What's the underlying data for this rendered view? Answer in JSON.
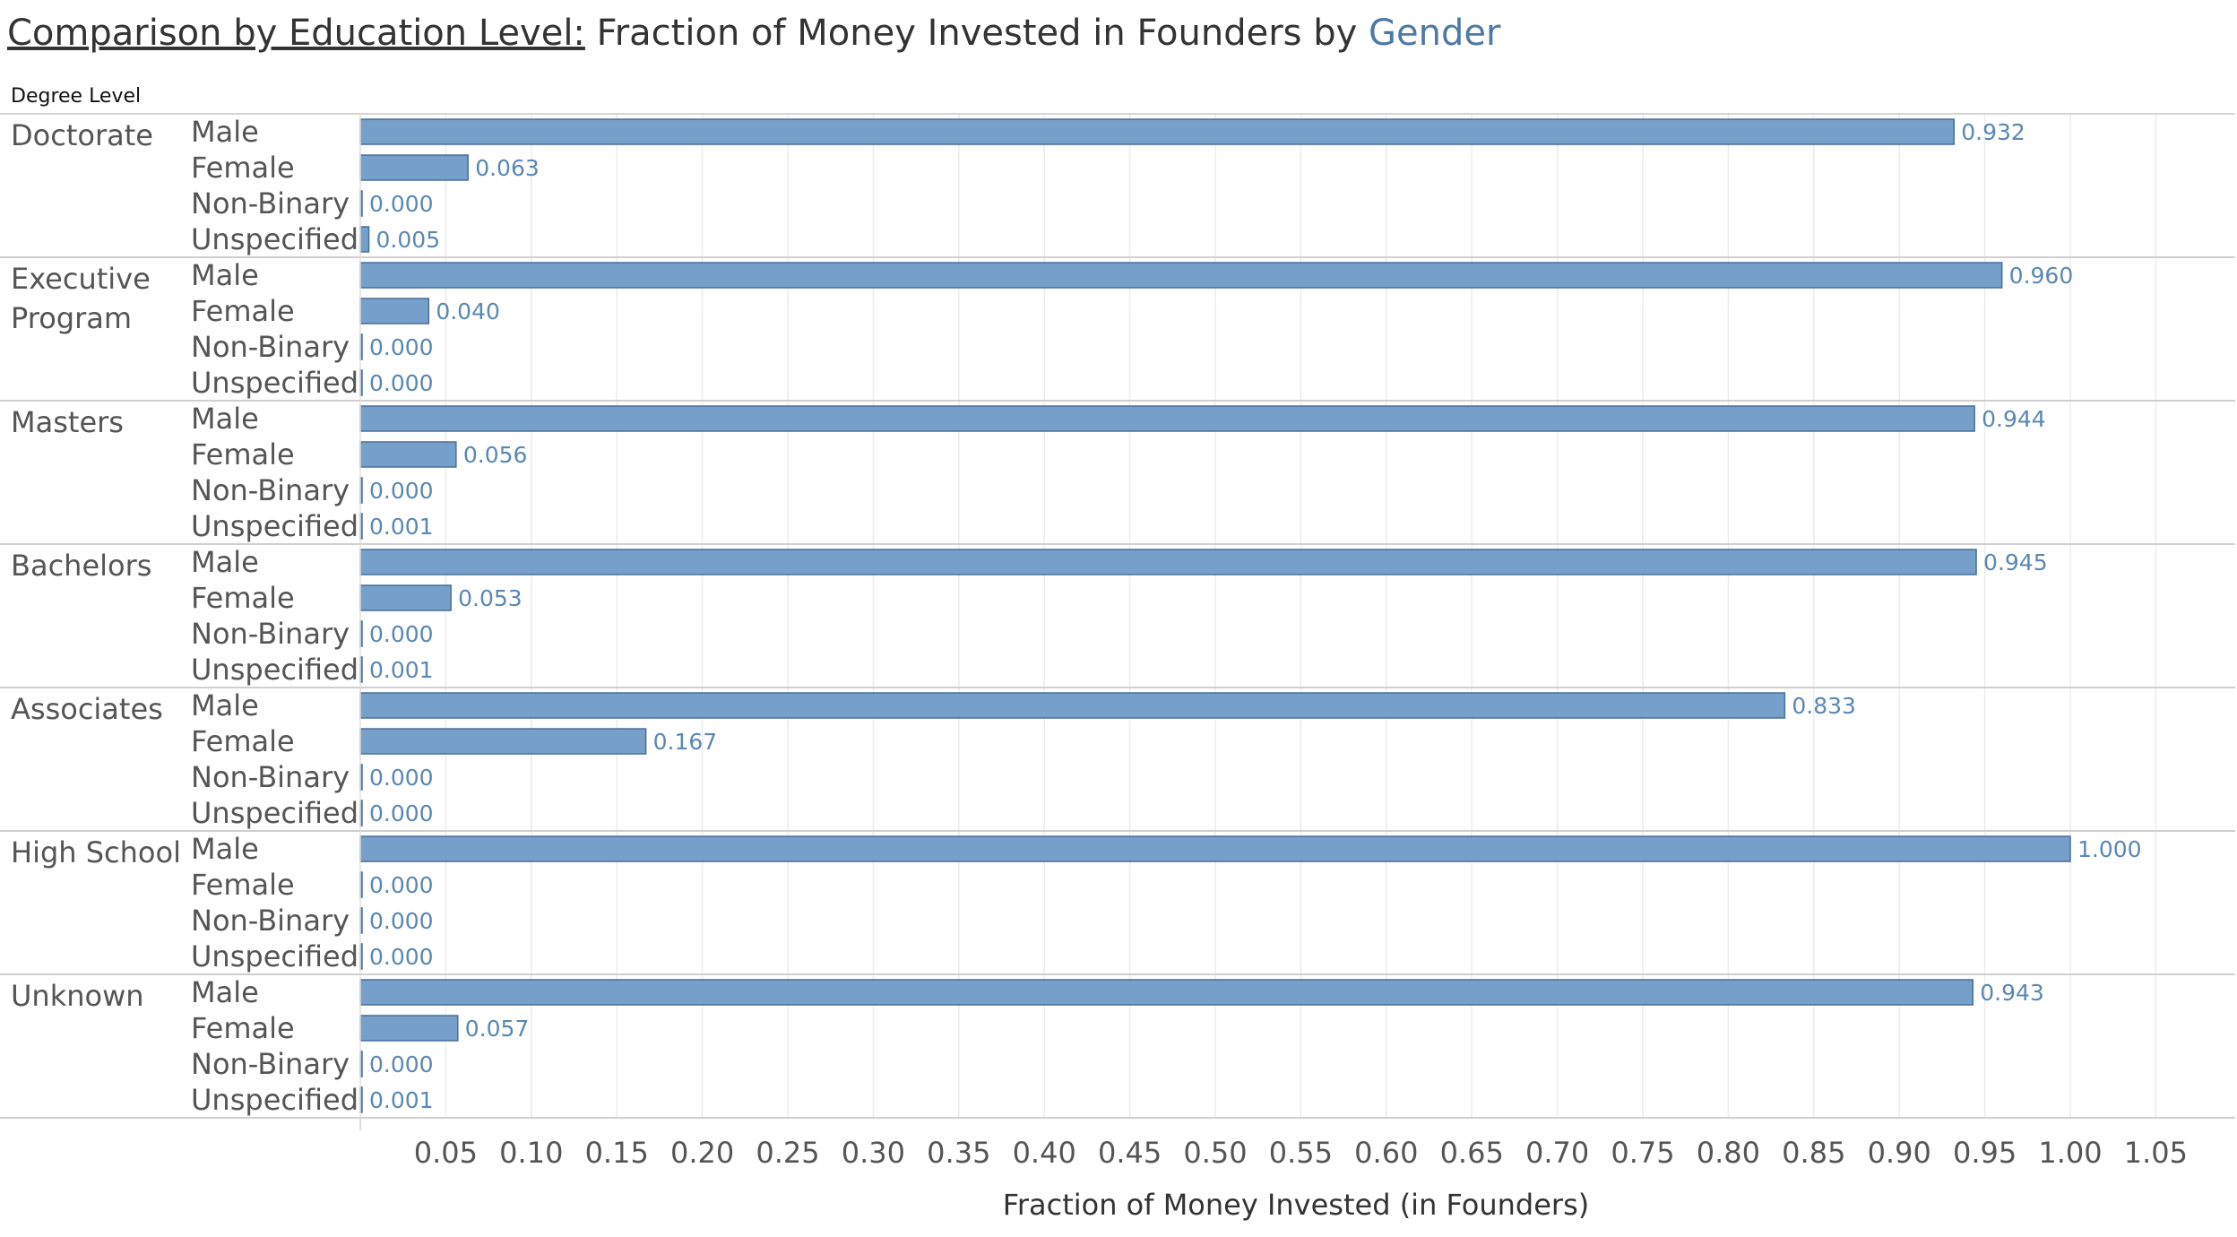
{
  "title": {
    "part1": "Comparison by Education Level:",
    "part2": " Fraction of Money Invested in Founders by ",
    "part3": "Gender"
  },
  "row_header": "Degree Level",
  "colors": {
    "bar": "#769fc9",
    "bar_border": "#4a6f98",
    "accent": "#4e79a7",
    "value_label": "#5b87b5"
  },
  "chart_data": {
    "type": "bar",
    "orientation": "horizontal",
    "title": "Comparison by Education Level: Fraction of Money Invested in Founders by Gender",
    "xlabel": "Fraction of Money Invested (in Founders)",
    "ylabel": "Degree Level",
    "xlim": [
      0,
      1.09
    ],
    "xticks": [
      "0.05",
      "0.10",
      "0.15",
      "0.20",
      "0.25",
      "0.30",
      "0.35",
      "0.40",
      "0.45",
      "0.50",
      "0.55",
      "0.60",
      "0.65",
      "0.70",
      "0.75",
      "0.80",
      "0.85",
      "0.90",
      "0.95",
      "1.00",
      "1.05"
    ],
    "grid": true,
    "genders": [
      "Male",
      "Female",
      "Non-Binary",
      "Unspecified"
    ],
    "groups": [
      {
        "label": "Doctorate",
        "values": [
          0.932,
          0.063,
          0.0,
          0.005
        ],
        "labels": [
          "0.932",
          "0.063",
          "0.000",
          "0.005"
        ]
      },
      {
        "label": "Executive Program",
        "label_lines": [
          "Executive",
          "Program"
        ],
        "values": [
          0.96,
          0.04,
          0.0,
          0.0
        ],
        "labels": [
          "0.960",
          "0.040",
          "0.000",
          "0.000"
        ]
      },
      {
        "label": "Masters",
        "values": [
          0.944,
          0.056,
          0.0,
          0.001
        ],
        "labels": [
          "0.944",
          "0.056",
          "0.000",
          "0.001"
        ]
      },
      {
        "label": "Bachelors",
        "values": [
          0.945,
          0.053,
          0.0,
          0.001
        ],
        "labels": [
          "0.945",
          "0.053",
          "0.000",
          "0.001"
        ]
      },
      {
        "label": "Associates",
        "values": [
          0.833,
          0.167,
          0.0,
          0.0
        ],
        "labels": [
          "0.833",
          "0.167",
          "0.000",
          "0.000"
        ]
      },
      {
        "label": "High School",
        "values": [
          1.0,
          0.0,
          0.0,
          0.0
        ],
        "labels": [
          "1.000",
          "0.000",
          "0.000",
          "0.000"
        ]
      },
      {
        "label": "Unknown",
        "values": [
          0.943,
          0.057,
          0.0,
          0.001
        ],
        "labels": [
          "0.943",
          "0.057",
          "0.000",
          "0.001"
        ]
      }
    ]
  }
}
